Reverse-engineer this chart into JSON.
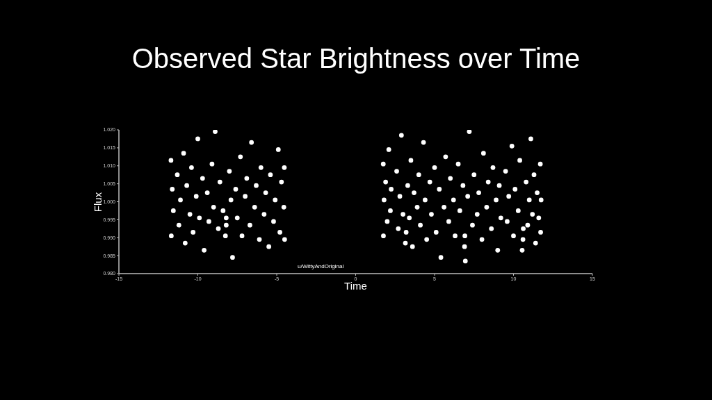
{
  "chart_data": {
    "type": "scatter",
    "title": "Observed Star Brightness over Time",
    "xlabel": "Time",
    "ylabel": "Flux",
    "annotations": [
      "u/WittyAndOriginal"
    ],
    "marker": "circle",
    "color": "#ffffff",
    "xlim": [
      -15,
      15
    ],
    "xticks": [
      -15,
      -10,
      -5,
      0,
      5,
      10,
      15
    ],
    "ylim": [
      0.98,
      1.02
    ],
    "yticks": [
      {
        "value": 0.98,
        "label": "0.980"
      },
      {
        "value": 0.985,
        "label": "0.985"
      },
      {
        "value": 0.99,
        "label": "0.990"
      },
      {
        "value": 0.995,
        "label": "0.995"
      },
      {
        "value": 1.0,
        "label": "1.000"
      },
      {
        "value": 1.005,
        "label": "1.005"
      },
      {
        "value": 1.01,
        "label": "1.010"
      },
      {
        "value": 1.015,
        "label": "1.015"
      },
      {
        "value": 1.02,
        "label": "1.020"
      }
    ],
    "x": [
      -11.7,
      -11.68,
      -11.62,
      -11.55,
      -11.3,
      -11.2,
      -11.1,
      -10.9,
      -10.8,
      -10.7,
      -10.5,
      -10.4,
      -10.3,
      -10.1,
      -10.0,
      -9.9,
      -9.7,
      -9.6,
      -9.4,
      -9.3,
      -9.1,
      -9.0,
      -8.9,
      -8.7,
      -8.6,
      -8.4,
      -8.25,
      -8.2,
      -8.2,
      -8.0,
      -7.9,
      -7.8,
      -7.6,
      -7.5,
      -7.3,
      -7.2,
      -7.0,
      -6.9,
      -6.7,
      -6.6,
      -6.4,
      -6.3,
      -6.1,
      -6.0,
      -5.8,
      -5.7,
      -5.5,
      -5.4,
      -5.2,
      -5.1,
      -4.9,
      -4.8,
      -4.7,
      -4.55,
      -4.52,
      -4.5,
      1.75,
      1.76,
      1.8,
      1.9,
      2.0,
      2.1,
      2.2,
      2.25,
      2.6,
      2.7,
      2.8,
      2.9,
      3.0,
      3.15,
      3.2,
      3.3,
      3.4,
      3.5,
      3.6,
      3.7,
      3.9,
      4.0,
      4.1,
      4.3,
      4.4,
      4.5,
      4.7,
      4.8,
      5.0,
      5.1,
      5.3,
      5.4,
      5.6,
      5.7,
      5.9,
      6.0,
      6.2,
      6.3,
      6.5,
      6.6,
      6.8,
      6.9,
      6.92,
      6.95,
      7.1,
      7.2,
      7.4,
      7.5,
      7.7,
      7.8,
      8.0,
      8.1,
      8.3,
      8.4,
      8.6,
      8.7,
      8.9,
      9.0,
      9.1,
      9.2,
      9.5,
      9.6,
      9.7,
      9.9,
      10.0,
      10.1,
      10.3,
      10.4,
      10.55,
      10.6,
      10.62,
      10.8,
      10.9,
      11.0,
      11.1,
      11.2,
      11.3,
      11.4,
      11.5,
      11.6,
      11.7,
      11.72,
      11.75
    ],
    "values": [
      1.0115,
      0.9905,
      1.0035,
      0.9975,
      1.0075,
      0.9935,
      1.0005,
      1.0135,
      0.9885,
      1.0045,
      0.9965,
      1.0095,
      0.9915,
      1.0015,
      1.0175,
      0.9955,
      1.0065,
      0.9865,
      1.0025,
      0.9945,
      1.0105,
      0.9985,
      1.0195,
      0.9925,
      1.0055,
      0.9975,
      0.9905,
      0.9935,
      0.9955,
      1.0085,
      1.0005,
      0.9845,
      1.0035,
      0.9955,
      1.0125,
      0.9905,
      1.0015,
      1.0065,
      0.9935,
      1.0165,
      0.9985,
      1.0045,
      0.9895,
      1.0095,
      0.9965,
      1.0025,
      0.9875,
      1.0075,
      0.9945,
      1.0005,
      1.0145,
      0.9915,
      1.0055,
      0.9985,
      1.0095,
      0.9895,
      1.0105,
      0.9905,
      1.0005,
      1.0055,
      0.9945,
      1.0145,
      0.9975,
      1.0035,
      1.0085,
      0.9925,
      1.0015,
      1.0185,
      0.9965,
      0.9885,
      0.9915,
      1.0045,
      0.9955,
      1.0115,
      0.9875,
      1.0025,
      0.9985,
      1.0075,
      0.9935,
      1.0165,
      1.0005,
      0.9895,
      1.0055,
      0.9965,
      1.0095,
      0.9915,
      1.0035,
      0.9845,
      0.9985,
      1.0125,
      0.9945,
      1.0065,
      1.0005,
      0.9905,
      1.0105,
      0.9975,
      1.0045,
      0.9875,
      0.9905,
      0.9835,
      1.0015,
      1.0195,
      0.9935,
      1.0075,
      0.9965,
      1.0025,
      0.9895,
      1.0135,
      0.9985,
      1.0055,
      0.9925,
      1.0095,
      1.0005,
      0.9865,
      1.0045,
      0.9955,
      1.0085,
      0.9945,
      1.0015,
      1.0155,
      0.9905,
      1.0035,
      0.9975,
      1.0115,
      0.9865,
      0.9895,
      0.9925,
      1.0055,
      0.9935,
      1.0005,
      1.0175,
      0.9965,
      1.0075,
      0.9885,
      1.0025,
      0.9955,
      1.0105,
      0.9915,
      1.0005
    ]
  }
}
